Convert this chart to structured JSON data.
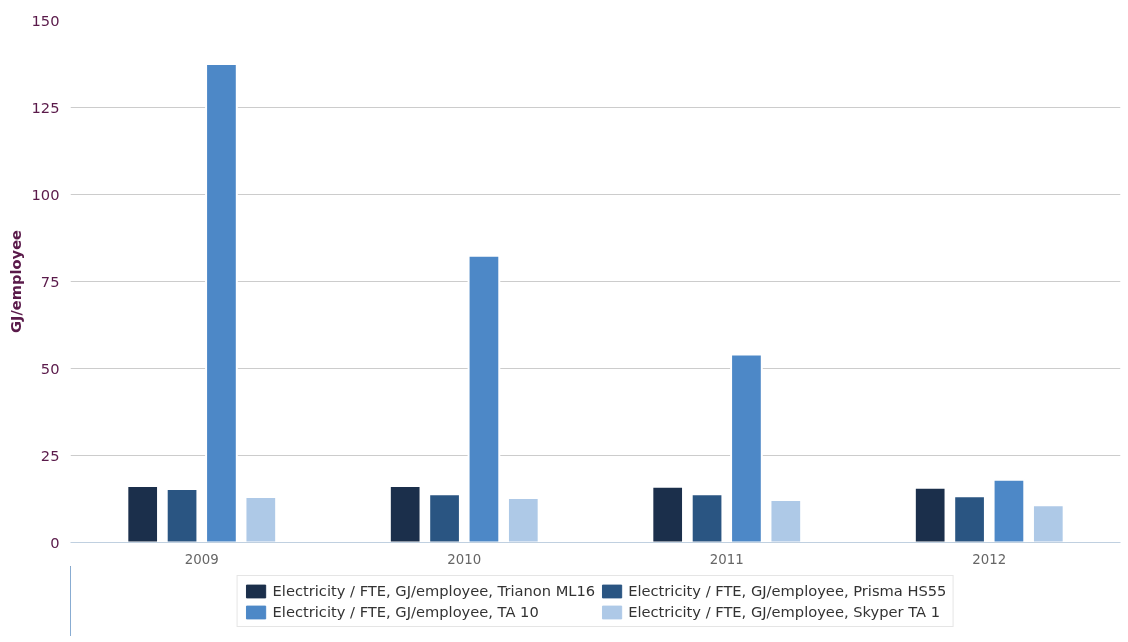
{
  "chart_data": {
    "type": "bar",
    "ylabel": "GJ/employee",
    "categories": [
      "2009",
      "2010",
      "2011",
      "2012"
    ],
    "series": [
      {
        "name": "Electricity / FTE, GJ/employee, Trianon ML16",
        "color": "#1b2f4b",
        "values": [
          16.2,
          16.2,
          16.0,
          15.7
        ]
      },
      {
        "name": "Electricity / FTE, GJ/employee, Prisma HS55",
        "color": "#2a5582",
        "values": [
          15.4,
          13.9,
          13.9,
          13.3
        ]
      },
      {
        "name": "Electricity / FTE, GJ/employee, TA 10",
        "color": "#4d88c7",
        "values": [
          137.5,
          82.4,
          54,
          18
        ]
      },
      {
        "name": "Electricity / FTE, GJ/employee, Skyper TA 1",
        "color": "#aec9e7",
        "values": [
          13.1,
          12.8,
          12.2,
          10.7
        ]
      }
    ],
    "ylim": [
      0,
      150
    ],
    "yticks": [
      0,
      25,
      50,
      75,
      100,
      125,
      150
    ],
    "grid": "y",
    "legend": "bottom"
  }
}
